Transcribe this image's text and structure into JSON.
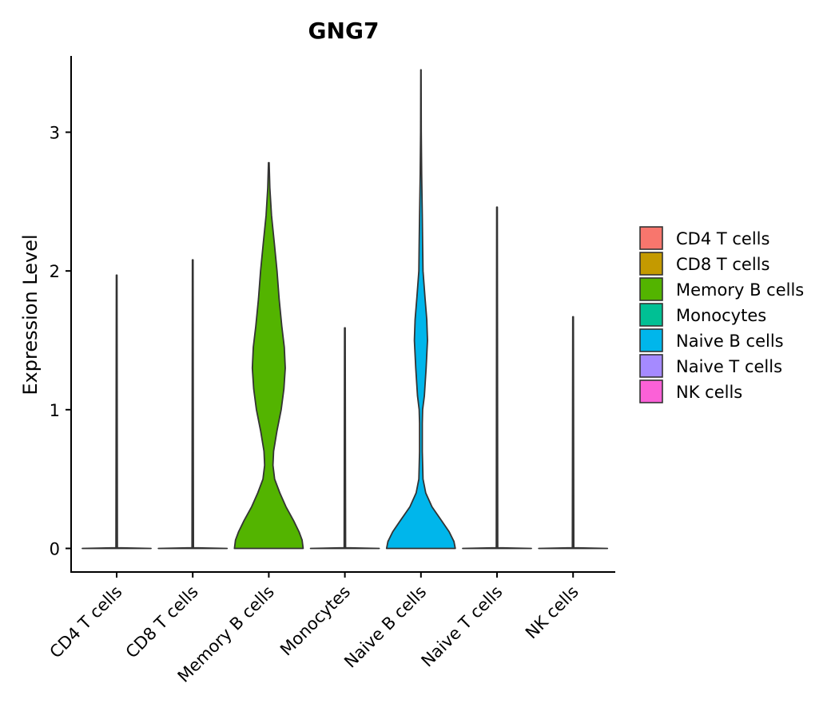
{
  "chart_data": {
    "type": "violin",
    "title": "GNG7",
    "xlabel": "",
    "ylabel": "Expression Level",
    "ylim": [
      -0.17,
      3.55
    ],
    "yticks": [
      0,
      1,
      2,
      3
    ],
    "categories": [
      "CD4 T cells",
      "CD8 T cells",
      "Memory B cells",
      "Monocytes",
      "Naive B cells",
      "Naive T cells",
      "NK cells"
    ],
    "colors": [
      "#F8766D",
      "#C49A00",
      "#53B400",
      "#00C094",
      "#00B6EB",
      "#A58AFF",
      "#FB61D7"
    ],
    "max_values": [
      1.97,
      2.08,
      2.78,
      1.59,
      3.45,
      2.46,
      1.67
    ],
    "density_profiles": [
      [
        [
          0,
          1.0
        ],
        [
          0.005,
          0.02
        ],
        [
          1.97,
          0.01
        ]
      ],
      [
        [
          0,
          1.0
        ],
        [
          0.005,
          0.02
        ],
        [
          2.08,
          0.01
        ]
      ],
      [
        [
          0,
          1.0
        ],
        [
          0.06,
          0.97
        ],
        [
          0.12,
          0.88
        ],
        [
          0.2,
          0.72
        ],
        [
          0.3,
          0.5
        ],
        [
          0.4,
          0.32
        ],
        [
          0.5,
          0.17
        ],
        [
          0.6,
          0.12
        ],
        [
          0.7,
          0.14
        ],
        [
          0.85,
          0.24
        ],
        [
          1.0,
          0.36
        ],
        [
          1.15,
          0.44
        ],
        [
          1.3,
          0.48
        ],
        [
          1.45,
          0.45
        ],
        [
          1.6,
          0.38
        ],
        [
          1.8,
          0.3
        ],
        [
          2.0,
          0.24
        ],
        [
          2.2,
          0.16
        ],
        [
          2.4,
          0.08
        ],
        [
          2.6,
          0.03
        ],
        [
          2.78,
          0.01
        ]
      ],
      [
        [
          0,
          1.0
        ],
        [
          0.005,
          0.02
        ],
        [
          1.59,
          0.01
        ]
      ],
      [
        [
          0,
          1.0
        ],
        [
          0.05,
          0.96
        ],
        [
          0.12,
          0.82
        ],
        [
          0.2,
          0.6
        ],
        [
          0.3,
          0.32
        ],
        [
          0.4,
          0.14
        ],
        [
          0.5,
          0.06
        ],
        [
          0.7,
          0.04
        ],
        [
          0.9,
          0.04
        ],
        [
          1.0,
          0.05
        ],
        [
          1.1,
          0.1
        ],
        [
          1.3,
          0.15
        ],
        [
          1.5,
          0.19
        ],
        [
          1.65,
          0.17
        ],
        [
          1.8,
          0.12
        ],
        [
          2.0,
          0.06
        ],
        [
          2.2,
          0.05
        ],
        [
          2.4,
          0.04
        ],
        [
          2.7,
          0.02
        ],
        [
          3.0,
          0.01
        ],
        [
          3.45,
          0.005
        ]
      ],
      [
        [
          0,
          1.0
        ],
        [
          0.005,
          0.02
        ],
        [
          2.46,
          0.01
        ]
      ],
      [
        [
          0,
          1.0
        ],
        [
          0.005,
          0.02
        ],
        [
          1.67,
          0.01
        ]
      ]
    ],
    "legend": {
      "position": "right",
      "entries": [
        "CD4 T cells",
        "CD8 T cells",
        "Memory B cells",
        "Monocytes",
        "Naive B cells",
        "Naive T cells",
        "NK cells"
      ]
    }
  }
}
